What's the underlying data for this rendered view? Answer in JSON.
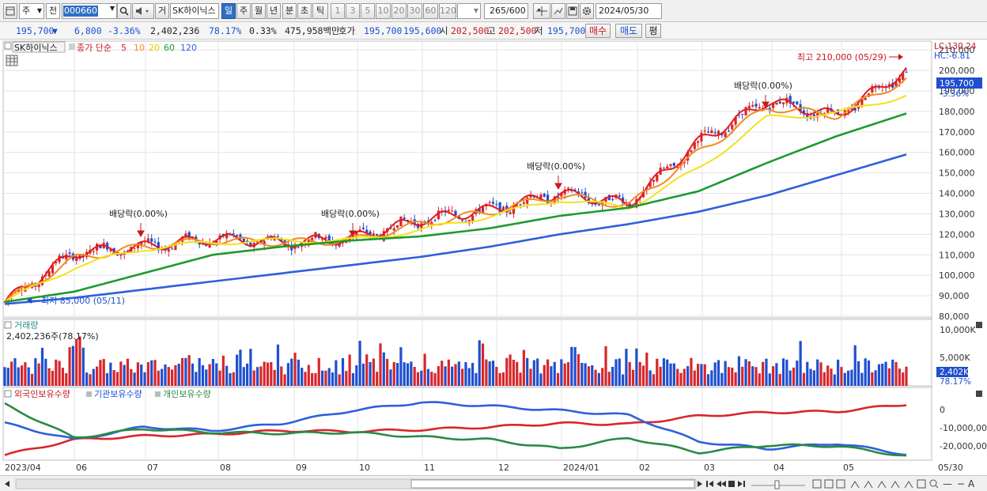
{
  "toolbar": {
    "period_box": "주",
    "view_box": "전",
    "stock_code": "000660",
    "market_tag": "거",
    "stock_name": "SK하이닉스",
    "periods": [
      "일",
      "주",
      "월",
      "년",
      "분",
      "초",
      "틱"
    ],
    "active_period": "일",
    "intervals": [
      "1",
      "3",
      "5",
      "10",
      "20",
      "30",
      "60",
      "120"
    ],
    "count_value": "265",
    "count_total": "/600",
    "date_value": "2024/05/30"
  },
  "quote": {
    "price": "195,700",
    "change_arrow": "▼",
    "change": "6,800",
    "change_pct": "-3.36%",
    "volume": "2,402,236",
    "volume_ratio": "78.17%",
    "turnover": "0.33%",
    "amount": "475,958백만",
    "hoga_label": "호가",
    "ask": "195,700",
    "bid": "195,600",
    "open_label": "시",
    "open": "202,500",
    "high_label": "고",
    "high": "202,500",
    "low_label": "저",
    "low": "195,700",
    "buy_label": "매수",
    "sell_label": "매도",
    "avg_label": "평"
  },
  "legend": {
    "name": "SK하이닉스",
    "ma_label": "종가 단순",
    "ma5": "5",
    "ma10": "10",
    "ma20": "20",
    "ma60": "60",
    "ma120": "120",
    "lc": "LC:130.24",
    "hc": "HC:-6.81"
  },
  "colors": {
    "up": "#d8262b",
    "down": "#1f4fcf",
    "ma5": "#e41a1c",
    "ma10": "#f08a24",
    "ma20": "#f2e21a",
    "ma60": "#1e9a2e",
    "ma120": "#2f5fdb"
  },
  "annotations": {
    "dividends": [
      "배당락(0.00%)",
      "배당락(0.00%)",
      "배당락(0.00%)",
      "배당락(0.00%)"
    ],
    "high_mark": "최고 210,000 (05/29)",
    "low_mark": "최저 85,000 (05/11)"
  },
  "price_axis": [
    "210,000",
    "200,000",
    "190,000",
    "180,000",
    "170,000",
    "160,000",
    "150,000",
    "140,000",
    "130,000",
    "120,000",
    "110,000",
    "100,000",
    "90,000",
    "80,000"
  ],
  "price_tag": {
    "value": "195,700",
    "pct": "-3.36%"
  },
  "volume_panel": {
    "title": "거래량",
    "info": "2,402,236주(78.17%)",
    "axis": [
      "10,000K",
      "5,000K"
    ],
    "tag": "2,402K",
    "tag_pct": "78.17%"
  },
  "holding_panel": {
    "series": [
      "외국인보유수량",
      "기관보유수량",
      "개인보유수량"
    ],
    "axis": [
      "0",
      "-10,000,000",
      "-20,000,000"
    ]
  },
  "date_axis": [
    "2023/04",
    "06",
    "07",
    "08",
    "09",
    "10",
    "11",
    "12",
    "2024/01",
    "02",
    "03",
    "04",
    "05",
    "05/30"
  ],
  "chart_data": {
    "type": "line",
    "title": "SK하이닉스",
    "x": [
      "2023/04",
      "06",
      "07",
      "08",
      "09",
      "10",
      "11",
      "12",
      "2024/01",
      "02",
      "03",
      "04",
      "05",
      "05/30"
    ],
    "ylim": [
      80000,
      212000
    ],
    "series": [
      {
        "name": "5",
        "values": [
          87000,
          111000,
          114000,
          118000,
          116000,
          118000,
          127000,
          132000,
          140000,
          135000,
          165000,
          185000,
          178000,
          200000
        ]
      },
      {
        "name": "10",
        "values": [
          87000,
          108000,
          114000,
          117000,
          116000,
          117000,
          125000,
          131000,
          139000,
          134000,
          160000,
          182000,
          178000,
          196000
        ]
      },
      {
        "name": "20",
        "values": [
          87000,
          104000,
          113000,
          116000,
          117000,
          117000,
          122000,
          129000,
          137000,
          133000,
          152000,
          177000,
          179000,
          188000
        ]
      },
      {
        "name": "60",
        "values": [
          87000,
          92000,
          101000,
          110000,
          114000,
          117000,
          119000,
          123000,
          129000,
          133000,
          141000,
          155000,
          168000,
          179000
        ]
      },
      {
        "name": "120",
        "values": [
          86000,
          89000,
          93000,
          97000,
          101000,
          105000,
          109000,
          114000,
          120000,
          125000,
          131000,
          139000,
          149000,
          159000
        ]
      }
    ],
    "markers": {
      "high": 210000,
      "low": 85000,
      "last": 195700
    }
  }
}
